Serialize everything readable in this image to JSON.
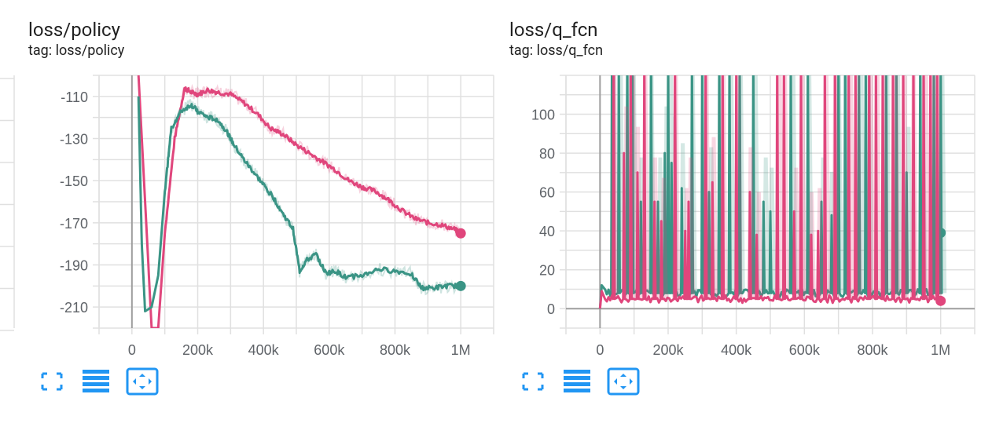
{
  "cards": [
    {
      "title": "loss/policy",
      "tag": "tag: loss/policy",
      "toolbar": {
        "fullscreen_icon": "fullscreen-icon",
        "data_table_icon": "data-table-icon",
        "fit_domain_icon": "fit-domain-icon"
      }
    },
    {
      "title": "loss/q_fcn",
      "tag": "tag: loss/q_fcn",
      "toolbar": {
        "fullscreen_icon": "fullscreen-icon",
        "data_table_icon": "data-table-icon",
        "fit_domain_icon": "fit-domain-icon"
      }
    }
  ],
  "colors": {
    "pink": "#e0467c",
    "teal": "#3a9485",
    "accent": "#2196f3",
    "grid": "#e0e0e0",
    "axis": "#9e9e9e"
  },
  "chart_data": [
    {
      "type": "line",
      "title": "loss/policy",
      "xlabel": "",
      "ylabel": "",
      "xlim": [
        -100000,
        1100000
      ],
      "ylim": [
        -220,
        -100
      ],
      "x_ticks": [
        0,
        200000,
        400000,
        600000,
        800000,
        1000000
      ],
      "x_tick_labels": [
        "0",
        "200k",
        "400k",
        "600k",
        "800k",
        "1M"
      ],
      "y_ticks": [
        -110,
        -130,
        -150,
        -170,
        -190,
        -210
      ],
      "y_tick_labels": [
        "-110",
        "-130",
        "-150",
        "-170",
        "-190",
        "-210"
      ],
      "grid": true,
      "series": [
        {
          "color": "#e0467c",
          "x": [
            20000,
            40000,
            60000,
            80000,
            100000,
            130000,
            160000,
            180000,
            200000,
            230000,
            260000,
            300000,
            340000,
            380000,
            420000,
            460000,
            500000,
            540000,
            580000,
            620000,
            660000,
            700000,
            740000,
            780000,
            820000,
            860000,
            900000,
            940000,
            980000,
            1000000
          ],
          "y": [
            -100,
            -160,
            -220,
            -220,
            -175,
            -130,
            -106,
            -108,
            -109,
            -107,
            -108,
            -109,
            -113,
            -118,
            -125,
            -128,
            -133,
            -137,
            -141,
            -145,
            -150,
            -153,
            -155,
            -159,
            -164,
            -168,
            -170,
            -171,
            -173,
            -175
          ]
        },
        {
          "color": "#3a9485",
          "x": [
            20000,
            30000,
            40000,
            60000,
            80000,
            100000,
            120000,
            150000,
            180000,
            200000,
            230000,
            260000,
            290000,
            310000,
            340000,
            370000,
            400000,
            430000,
            460000,
            490000,
            510000,
            530000,
            560000,
            590000,
            620000,
            650000,
            700000,
            750000,
            800000,
            850000,
            880000,
            920000,
            960000,
            1000000
          ],
          "y": [
            -110,
            -180,
            -212,
            -210,
            -195,
            -155,
            -125,
            -117,
            -114,
            -117,
            -120,
            -121,
            -127,
            -133,
            -140,
            -146,
            -152,
            -158,
            -166,
            -173,
            -193,
            -188,
            -185,
            -194,
            -193,
            -196,
            -195,
            -192,
            -193,
            -194,
            -201,
            -201,
            -200,
            -200
          ]
        }
      ]
    },
    {
      "type": "line",
      "title": "loss/q_fcn",
      "xlabel": "",
      "ylabel": "",
      "xlim": [
        -100000,
        1100000
      ],
      "ylim": [
        -10,
        120
      ],
      "x_ticks": [
        0,
        200000,
        400000,
        600000,
        800000,
        1000000
      ],
      "x_tick_labels": [
        "0",
        "200k",
        "400k",
        "600k",
        "800k",
        "1M"
      ],
      "y_ticks": [
        0,
        20,
        40,
        60,
        80,
        100
      ],
      "y_tick_labels": [
        "0",
        "20",
        "40",
        "60",
        "80",
        "100"
      ],
      "grid": true,
      "series": [
        {
          "color": "#3a9485",
          "baseline": 8,
          "spikes": [
            [
              35000,
              130
            ],
            [
              55000,
              130
            ],
            [
              80000,
              130
            ],
            [
              95000,
              130
            ],
            [
              120000,
              55
            ],
            [
              150000,
              130
            ],
            [
              170000,
              55
            ],
            [
              190000,
              80
            ],
            [
              200000,
              130
            ],
            [
              210000,
              75
            ],
            [
              240000,
              62
            ],
            [
              270000,
              130
            ],
            [
              300000,
              130
            ],
            [
              320000,
              60
            ],
            [
              350000,
              130
            ],
            [
              380000,
              130
            ],
            [
              410000,
              130
            ],
            [
              450000,
              130
            ],
            [
              480000,
              55
            ],
            [
              500000,
              50
            ],
            [
              560000,
              130
            ],
            [
              610000,
              130
            ],
            [
              650000,
              55
            ],
            [
              680000,
              48
            ],
            [
              700000,
              130
            ],
            [
              720000,
              130
            ],
            [
              760000,
              130
            ],
            [
              780000,
              130
            ],
            [
              840000,
              130
            ],
            [
              870000,
              130
            ],
            [
              900000,
              70
            ],
            [
              940000,
              130
            ],
            [
              980000,
              130
            ],
            [
              1000000,
              130
            ]
          ],
          "end_value": 39
        },
        {
          "color": "#e0467c",
          "baseline": 5,
          "spikes": [
            [
              40000,
              130
            ],
            [
              70000,
              80
            ],
            [
              90000,
              130
            ],
            [
              110000,
              70
            ],
            [
              130000,
              130
            ],
            [
              160000,
              55
            ],
            [
              180000,
              45
            ],
            [
              220000,
              130
            ],
            [
              250000,
              40
            ],
            [
              260000,
              55
            ],
            [
              310000,
              130
            ],
            [
              330000,
              65
            ],
            [
              360000,
              130
            ],
            [
              400000,
              130
            ],
            [
              440000,
              60
            ],
            [
              460000,
              38
            ],
            [
              520000,
              130
            ],
            [
              540000,
              130
            ],
            [
              570000,
              50
            ],
            [
              590000,
              130
            ],
            [
              620000,
              38
            ],
            [
              640000,
              40
            ],
            [
              660000,
              130
            ],
            [
              690000,
              130
            ],
            [
              730000,
              130
            ],
            [
              750000,
              130
            ],
            [
              790000,
              130
            ],
            [
              810000,
              130
            ],
            [
              830000,
              130
            ],
            [
              860000,
              130
            ],
            [
              890000,
              130
            ],
            [
              920000,
              130
            ],
            [
              950000,
              130
            ],
            [
              970000,
              130
            ],
            [
              990000,
              130
            ]
          ],
          "end_value": 4
        }
      ]
    }
  ]
}
